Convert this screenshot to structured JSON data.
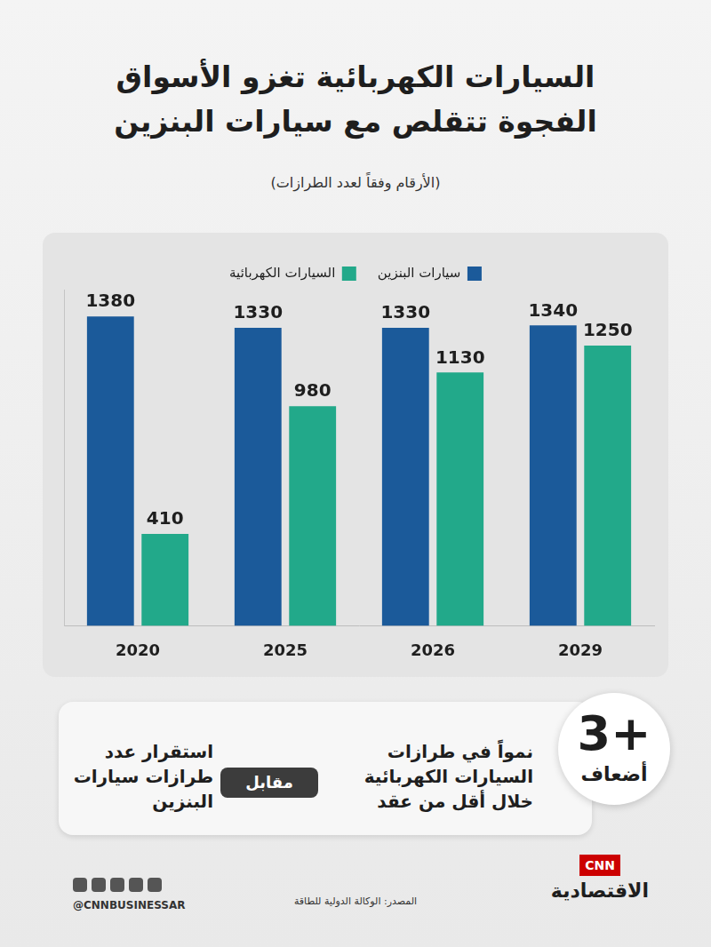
{
  "header": {
    "title": [
      "السيارات الكهربائية تغزو الأسواق",
      "الفجوة تتقلص مع سيارات البنزين"
    ],
    "subtitle": "(الأرقام وفقاً لعدد الطرازات)"
  },
  "chart_data": {
    "type": "bar",
    "categories": [
      "2020",
      "2025",
      "2026",
      "2029"
    ],
    "series": [
      {
        "name": "سيارات البنزين",
        "color": "#1b5a9a",
        "values": [
          1380,
          1330,
          1330,
          1340
        ]
      },
      {
        "name": "السيارات الكهربائية",
        "color": "#22a98a",
        "values": [
          410,
          980,
          1130,
          1250
        ]
      }
    ],
    "ylim": [
      0,
      1500
    ],
    "grid": false,
    "legend": "top",
    "data_labels": true,
    "tick_labels": "x"
  },
  "summary": {
    "figure": "+3",
    "figure_unit": "أضعاف",
    "growth_text": "نمواً في طرازات السيارات الكهربائية خلال أقل من عقد",
    "versus": "مقابل",
    "stable_text": "استقرار عدد طرازات سيارات البنزين"
  },
  "footer": {
    "handle": "@CNNBUSINESSAR",
    "source": "المصدر: الوكالة الدولية للطاقة",
    "logo": [
      "CNN",
      "الاقتصادية"
    ]
  }
}
